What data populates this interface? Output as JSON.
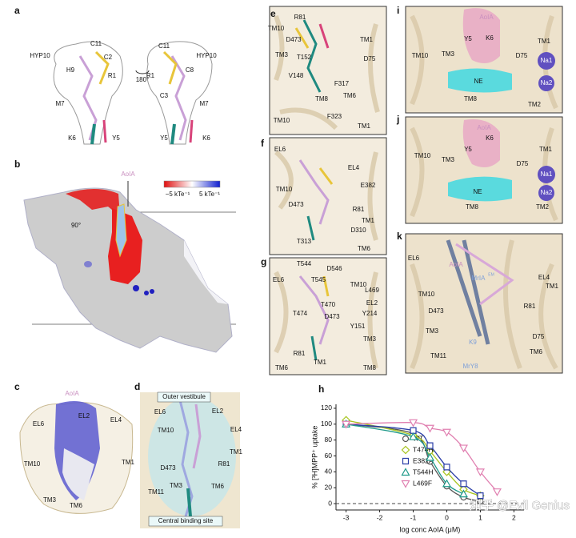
{
  "panels": {
    "a": {
      "letter": "a",
      "labels": [
        "HYP10",
        "C11",
        "C2",
        "R1",
        "H9",
        "M7",
        "K6",
        "Y5",
        "180°",
        "C11",
        "HYP10",
        "R1",
        "C8",
        "C3",
        "M7",
        "Y5",
        "K6"
      ]
    },
    "b": {
      "letter": "b",
      "labels": [
        "AoIA",
        "−5 kTe⁻¹",
        "5 kTe⁻¹",
        "90°"
      ]
    },
    "c": {
      "letter": "c",
      "labels": [
        "AoIA",
        "EL2",
        "EL4",
        "EL6",
        "TM10",
        "TM1",
        "TM3",
        "TM6"
      ]
    },
    "d": {
      "letter": "d",
      "labels": [
        "Outer vestibule",
        "EL6",
        "EL2",
        "EL4",
        "TM10",
        "R81",
        "TM1",
        "D473",
        "TM3",
        "TM6",
        "TM11",
        "Central binding site"
      ]
    },
    "e": {
      "letter": "e",
      "labels": [
        "R81",
        "TM10",
        "D473",
        "TM1",
        "TM3",
        "T152",
        "D75",
        "V148",
        "F317",
        "TM6",
        "TM8",
        "TM10",
        "F323",
        "TM1"
      ]
    },
    "f": {
      "letter": "f",
      "labels": [
        "EL6",
        "EL4",
        "TM10",
        "E382",
        "R81",
        "D473",
        "TM1",
        "D310",
        "T313",
        "TM6"
      ]
    },
    "g": {
      "letter": "g",
      "labels": [
        "T544",
        "D546",
        "EL6",
        "T545",
        "TM10",
        "L469",
        "EL2",
        "T470",
        "T474",
        "D473",
        "Y214",
        "Y151",
        "R81",
        "TM3",
        "TM6",
        "TM1",
        "TM8"
      ]
    },
    "i": {
      "letter": "i",
      "labels": [
        "AoIA",
        "TM10",
        "Y5",
        "K6",
        "TM1",
        "TM3",
        "D75",
        "Na1",
        "NE",
        "Na2",
        "TM8",
        "TM2"
      ]
    },
    "j": {
      "letter": "j",
      "labels": [
        "AoIA",
        "TM10",
        "Y5",
        "K6",
        "TM1",
        "TM3",
        "D75",
        "Na1",
        "NE",
        "Na2",
        "TM8",
        "TM2"
      ]
    },
    "k": {
      "letter": "k",
      "labels": [
        "EL6",
        "AoIA",
        "MrIA",
        "EM",
        "TM10",
        "EL4",
        "TM1",
        "D473",
        "R81",
        "TM3",
        "D75",
        "TM11",
        "TM6",
        "K9",
        "MrY8"
      ]
    }
  },
  "chart_data": {
    "type": "line",
    "letter": "h",
    "y_label": "% [³H]MPP⁺ uptake",
    "x_label": "log conc AoIA (μM)",
    "x": [
      -3,
      -1,
      -0.5,
      0,
      0.5,
      1,
      1.5
    ],
    "xlim": [
      -3.3,
      2.3
    ],
    "xticks": [
      -3,
      -2,
      -1,
      0,
      1,
      2
    ],
    "ylim": [
      -8,
      125
    ],
    "yticks": [
      0,
      20,
      40,
      60,
      80,
      100,
      120
    ],
    "reference_line": 0,
    "series": [
      {
        "name": "WT",
        "color": "#555555",
        "marker": "circle",
        "values": [
          100,
          88,
          53,
          22,
          8,
          3,
          null
        ]
      },
      {
        "name": "T474H",
        "color": "#a8c520",
        "marker": "diamond",
        "values": [
          105,
          86,
          66,
          40,
          18,
          10,
          null
        ]
      },
      {
        "name": "E382A",
        "color": "#2b3fa8",
        "marker": "square",
        "values": [
          100,
          92,
          73,
          46,
          25,
          10,
          null
        ]
      },
      {
        "name": "T544H",
        "color": "#1f9a8a",
        "marker": "triangle",
        "values": [
          100,
          84,
          58,
          25,
          12,
          null,
          null
        ]
      },
      {
        "name": "L469F",
        "color": "#e07fb0",
        "marker": "triangle-down",
        "values": [
          100,
          102,
          95,
          90,
          70,
          40,
          15
        ]
      }
    ],
    "watermark": "知乎 @Evil Genius"
  }
}
